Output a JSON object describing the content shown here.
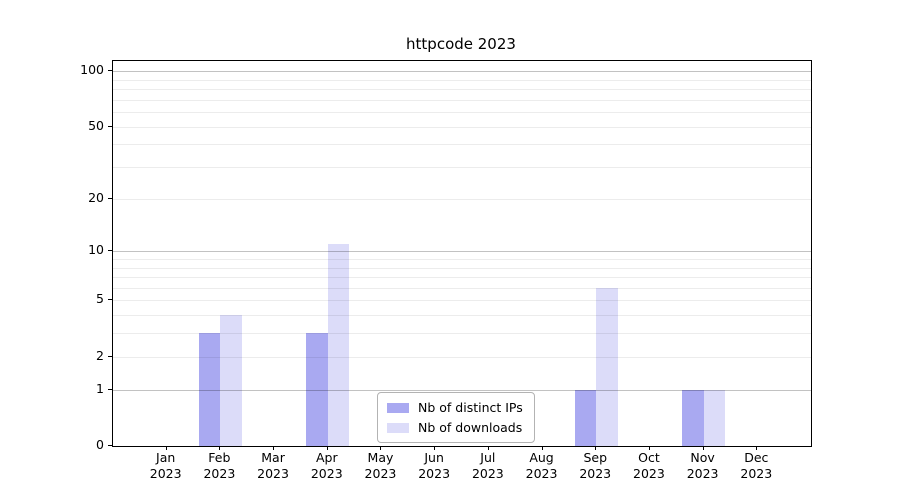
{
  "chart_data": {
    "type": "bar",
    "title": "httpcode 2023",
    "categories": [
      "Jan 2023",
      "Feb 2023",
      "Mar 2023",
      "Apr 2023",
      "May 2023",
      "Jun 2023",
      "Jul 2023",
      "Aug 2023",
      "Sep 2023",
      "Oct 2023",
      "Nov 2023",
      "Dec 2023"
    ],
    "series": [
      {
        "name": "Nb of distinct IPs",
        "color": "#a9a9f1",
        "values": [
          0,
          3,
          0,
          3,
          0,
          0,
          0,
          0,
          1,
          0,
          1,
          0
        ]
      },
      {
        "name": "Nb of downloads",
        "color": "#dcdcf9",
        "values": [
          0,
          4,
          0,
          11,
          0,
          0,
          0,
          0,
          6,
          0,
          1,
          0
        ]
      }
    ],
    "xlabel": "",
    "ylabel": "",
    "yscale": "log1p",
    "ylim": [
      0,
      110
    ],
    "y_ticks": [
      0,
      1,
      2,
      5,
      10,
      20,
      50,
      100
    ],
    "y_gridlines": {
      "major": [
        1,
        10,
        100
      ],
      "minor": [
        2,
        3,
        4,
        5,
        6,
        7,
        8,
        9,
        20,
        30,
        40,
        50,
        60,
        70,
        80,
        90
      ]
    },
    "grid": true,
    "legend": {
      "position": "lower center",
      "labels": [
        "Nb of distinct IPs",
        "Nb of downloads"
      ]
    }
  }
}
